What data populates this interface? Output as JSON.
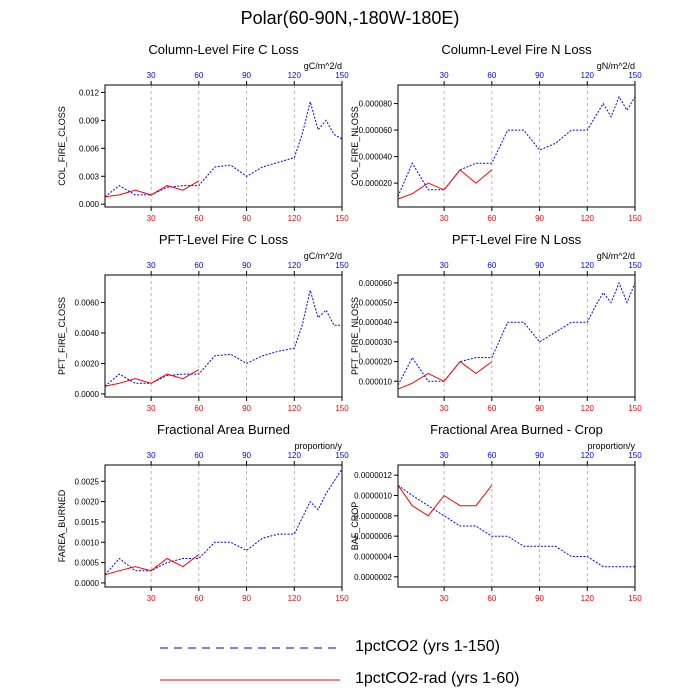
{
  "title": "Polar(60-90N,-180W-180E)",
  "colors": {
    "blue": "#0000ff",
    "red": "#ff0000",
    "grid": "#999999"
  },
  "legend": [
    {
      "label": "1pctCO2 (yrs 1-150)",
      "color": "#0000ff",
      "style": "dashed"
    },
    {
      "label": "1pctCO2-rad (yrs 1-60)",
      "color": "#ff0000",
      "style": "solid"
    }
  ],
  "chart_data": [
    {
      "type": "line",
      "title": "Column-Level Fire C Loss",
      "ylabel": "COL_FIRE_CLOSS",
      "units": "gC/m^2/d",
      "xlim": [
        1,
        150
      ],
      "ylim": [
        -0.0003,
        0.0128
      ],
      "xticks_bottom": [
        "30",
        "60",
        "90",
        "120",
        "150"
      ],
      "xticks_top": [
        "30",
        "60",
        "90",
        "120",
        "150"
      ],
      "yticks": [
        0,
        0.003,
        0.006,
        0.009,
        0.012
      ],
      "ytick_labels": [
        "0.000",
        "0.003",
        "0.006",
        "0.009",
        "0.012"
      ],
      "grid": "vertical dashed at 30,60,90,120",
      "series": [
        {
          "name": "1pctCO2 (yrs 1-150)",
          "color": "#0000ff",
          "x": [
            1,
            10,
            20,
            30,
            40,
            50,
            60,
            70,
            80,
            90,
            100,
            110,
            120,
            125,
            130,
            135,
            140,
            145,
            150
          ],
          "values": [
            0.0008,
            0.002,
            0.001,
            0.001,
            0.0018,
            0.002,
            0.002,
            0.004,
            0.0042,
            0.003,
            0.004,
            0.0045,
            0.005,
            0.0075,
            0.011,
            0.008,
            0.009,
            0.0075,
            0.007
          ]
        },
        {
          "name": "1pctCO2-rad (yrs 1-60)",
          "color": "#ff0000",
          "x": [
            1,
            10,
            20,
            30,
            40,
            50,
            60
          ],
          "values": [
            0.0008,
            0.001,
            0.0015,
            0.001,
            0.002,
            0.0015,
            0.0025
          ]
        }
      ]
    },
    {
      "type": "line",
      "title": "Column-Level Fire N Loss",
      "ylabel": "COL_FIRE_NLOSS",
      "units": "gN/m^2/d",
      "xlim": [
        1,
        150
      ],
      "ylim": [
        2e-06,
        9.4e-05
      ],
      "xticks_bottom": [
        "30",
        "60",
        "90",
        "120",
        "150"
      ],
      "xticks_top": [
        "30",
        "60",
        "90",
        "120",
        "150"
      ],
      "yticks": [
        2e-05,
        4e-05,
        6e-05,
        8e-05
      ],
      "ytick_labels": [
        "0.000020",
        "0.000040",
        "0.000060",
        "0.000080"
      ],
      "grid": "vertical dashed at 30,60,90,120",
      "series": [
        {
          "name": "1pctCO2 (yrs 1-150)",
          "color": "#0000ff",
          "x": [
            1,
            10,
            20,
            30,
            40,
            50,
            60,
            70,
            80,
            90,
            100,
            110,
            120,
            125,
            130,
            135,
            140,
            145,
            150
          ],
          "values": [
            1e-05,
            3.5e-05,
            1.5e-05,
            1.5e-05,
            3e-05,
            3.5e-05,
            3.5e-05,
            6e-05,
            6e-05,
            4.5e-05,
            5e-05,
            6e-05,
            6e-05,
            7e-05,
            8e-05,
            7e-05,
            8.5e-05,
            7.5e-05,
            8.5e-05
          ]
        },
        {
          "name": "1pctCO2-rad (yrs 1-60)",
          "color": "#ff0000",
          "x": [
            1,
            10,
            20,
            30,
            40,
            50,
            60
          ],
          "values": [
            8e-06,
            1.2e-05,
            2e-05,
            1.5e-05,
            3e-05,
            2e-05,
            3e-05
          ]
        }
      ]
    },
    {
      "type": "line",
      "title": "PFT-Level Fire C Loss",
      "ylabel": "PFT_FIRE_CLOSS",
      "units": "gC/m^2/d",
      "xlim": [
        1,
        150
      ],
      "ylim": [
        -0.0002,
        0.0078
      ],
      "xticks_bottom": [
        "30",
        "60",
        "90",
        "120",
        "150"
      ],
      "xticks_top": [
        "30",
        "60",
        "90",
        "120",
        "150"
      ],
      "yticks": [
        0,
        0.002,
        0.004,
        0.006
      ],
      "ytick_labels": [
        "0.0000",
        "0.0020",
        "0.0040",
        "0.0060"
      ],
      "grid": "vertical dashed at 30,60,90,120",
      "series": [
        {
          "name": "1pctCO2 (yrs 1-150)",
          "color": "#0000ff",
          "x": [
            1,
            10,
            20,
            30,
            40,
            50,
            60,
            70,
            80,
            90,
            100,
            110,
            120,
            125,
            130,
            135,
            140,
            145,
            150
          ],
          "values": [
            0.0005,
            0.0013,
            0.0007,
            0.0007,
            0.0012,
            0.0013,
            0.0013,
            0.0025,
            0.0026,
            0.002,
            0.0025,
            0.0028,
            0.003,
            0.0045,
            0.0068,
            0.005,
            0.0055,
            0.0045,
            0.0045
          ]
        },
        {
          "name": "1pctCO2-rad (yrs 1-60)",
          "color": "#ff0000",
          "x": [
            1,
            10,
            20,
            30,
            40,
            50,
            60
          ],
          "values": [
            0.0005,
            0.0007,
            0.001,
            0.0007,
            0.0013,
            0.001,
            0.0016
          ]
        }
      ]
    },
    {
      "type": "line",
      "title": "PFT-Level Fire N Loss",
      "ylabel": "PFT_FIRE_NLOSS",
      "units": "gN/m^2/d",
      "xlim": [
        1,
        150
      ],
      "ylim": [
        2e-06,
        6.4e-05
      ],
      "xticks_bottom": [
        "30",
        "60",
        "90",
        "120",
        "150"
      ],
      "xticks_top": [
        "30",
        "60",
        "90",
        "120",
        "150"
      ],
      "yticks": [
        1e-05,
        2e-05,
        3e-05,
        4e-05,
        5e-05,
        6e-05
      ],
      "ytick_labels": [
        "0.000010",
        "0.000020",
        "0.000030",
        "0.000040",
        "0.000050",
        "0.000060"
      ],
      "grid": "vertical dashed at 30,60,90,120",
      "series": [
        {
          "name": "1pctCO2 (yrs 1-150)",
          "color": "#0000ff",
          "x": [
            1,
            10,
            20,
            30,
            40,
            50,
            60,
            70,
            80,
            90,
            100,
            110,
            120,
            125,
            130,
            135,
            140,
            145,
            150
          ],
          "values": [
            8e-06,
            2.2e-05,
            1e-05,
            1e-05,
            2e-05,
            2.2e-05,
            2.2e-05,
            4e-05,
            4e-05,
            3e-05,
            3.5e-05,
            4e-05,
            4e-05,
            4.8e-05,
            5.5e-05,
            5e-05,
            6e-05,
            5e-05,
            6e-05
          ]
        },
        {
          "name": "1pctCO2-rad (yrs 1-60)",
          "color": "#ff0000",
          "x": [
            1,
            10,
            20,
            30,
            40,
            50,
            60
          ],
          "values": [
            6e-06,
            9e-06,
            1.4e-05,
            1e-05,
            2e-05,
            1.4e-05,
            2e-05
          ]
        }
      ]
    },
    {
      "type": "line",
      "title": "Fractional Area Burned",
      "ylabel": "FAREA_BURNED",
      "units": "proportion/y",
      "xlim": [
        1,
        150
      ],
      "ylim": [
        -0.0001,
        0.0029
      ],
      "xticks_bottom": [
        "30",
        "60",
        "90",
        "120",
        "150"
      ],
      "xticks_top": [
        "30",
        "60",
        "90",
        "120",
        "150"
      ],
      "yticks": [
        0,
        0.0005,
        0.001,
        0.0015,
        0.002,
        0.0025
      ],
      "ytick_labels": [
        "0.0000",
        "0.0005",
        "0.0010",
        "0.0015",
        "0.0020",
        "0.0025"
      ],
      "grid": "vertical dashed at 30,60,90,120",
      "series": [
        {
          "name": "1pctCO2 (yrs 1-150)",
          "color": "#0000ff",
          "x": [
            1,
            10,
            20,
            30,
            40,
            50,
            60,
            70,
            80,
            90,
            100,
            110,
            120,
            125,
            130,
            135,
            140,
            145,
            150
          ],
          "values": [
            0.0002,
            0.0006,
            0.0003,
            0.0003,
            0.0005,
            0.0006,
            0.0006,
            0.001,
            0.001,
            0.0008,
            0.0011,
            0.0012,
            0.0012,
            0.0016,
            0.002,
            0.0018,
            0.0022,
            0.0025,
            0.0028
          ]
        },
        {
          "name": "1pctCO2-rad (yrs 1-60)",
          "color": "#ff0000",
          "x": [
            1,
            10,
            20,
            30,
            40,
            50,
            60
          ],
          "values": [
            0.0002,
            0.0003,
            0.0004,
            0.0003,
            0.0006,
            0.0004,
            0.0007
          ]
        }
      ]
    },
    {
      "type": "line",
      "title": "Fractional Area Burned - Crop",
      "ylabel": "BAF_CROP",
      "units": "proportion/y",
      "xlim": [
        1,
        150
      ],
      "ylim": [
        1e-07,
        1.3e-06
      ],
      "xticks_bottom": [
        "30",
        "60",
        "90",
        "120",
        "150"
      ],
      "xticks_top": [
        "30",
        "60",
        "90",
        "120",
        "150"
      ],
      "yticks": [
        2e-07,
        4e-07,
        6e-07,
        8e-07,
        1e-06,
        1.2e-06
      ],
      "ytick_labels": [
        "0.0000002",
        "0.0000004",
        "0.0000006",
        "0.0000008",
        "0.0000010",
        "0.0000012"
      ],
      "grid": "vertical dashed at 30,60,90,120",
      "series": [
        {
          "name": "1pctCO2 (yrs 1-150)",
          "color": "#0000ff",
          "x": [
            1,
            10,
            20,
            30,
            40,
            50,
            60,
            70,
            80,
            90,
            100,
            110,
            120,
            130,
            140,
            150
          ],
          "values": [
            1.1e-06,
            1e-06,
            9e-07,
            8e-07,
            7e-07,
            7e-07,
            6e-07,
            6e-07,
            5e-07,
            5e-07,
            5e-07,
            4e-07,
            4e-07,
            3e-07,
            3e-07,
            3e-07
          ]
        },
        {
          "name": "1pctCO2-rad (yrs 1-60)",
          "color": "#ff0000",
          "x": [
            1,
            10,
            20,
            30,
            40,
            50,
            60
          ],
          "values": [
            1.1e-06,
            9e-07,
            8e-07,
            1e-06,
            9e-07,
            9e-07,
            1.1e-06
          ]
        }
      ]
    }
  ]
}
